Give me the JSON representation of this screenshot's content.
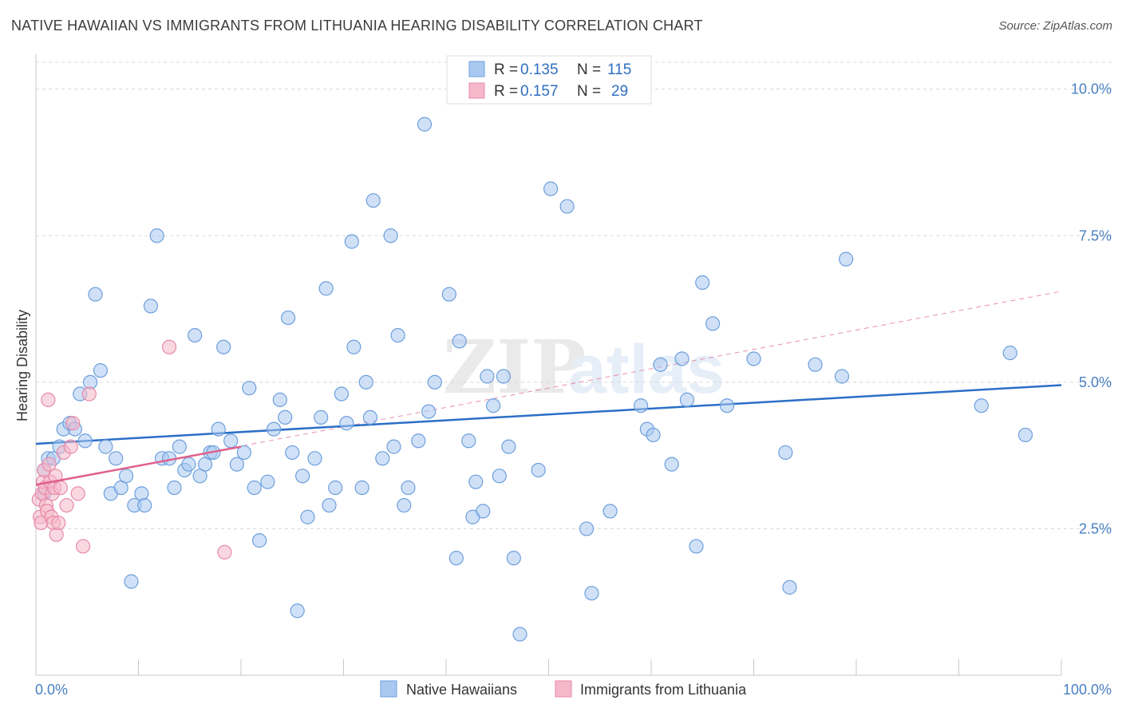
{
  "title": "NATIVE HAWAIIAN VS IMMIGRANTS FROM LITHUANIA HEARING DISABILITY CORRELATION CHART",
  "source": "Source: ZipAtlas.com",
  "watermark": {
    "zip": "ZIP",
    "atlas": "atlas"
  },
  "colors": {
    "blue_fill": "#a9c8f0",
    "blue_stroke": "#6d9fdc",
    "blue_line": "#2b6fc6",
    "pink_fill": "#f5b8cb",
    "pink_stroke": "#e68aa8",
    "pink_line": "#e0608c",
    "grid": "#d8d8d8",
    "tick_text": "#4a7fc1"
  },
  "legend": {
    "rows": [
      {
        "r_label": "R = ",
        "r_value": "0.135",
        "n_label": "N = ",
        "n_value": "115"
      },
      {
        "r_label": "R = ",
        "r_value": "0.157",
        "n_label": "N = ",
        "n_value": "29"
      }
    ]
  },
  "bottom_legend": [
    "Native Hawaiians",
    "Immigrants from Lithuania"
  ],
  "chart_data": {
    "type": "scatter",
    "title": "NATIVE HAWAIIAN VS IMMIGRANTS FROM LITHUANIA HEARING DISABILITY CORRELATION CHART",
    "xlabel": "",
    "ylabel": "Hearing Disability",
    "xlim": [
      0,
      100
    ],
    "ylim": [
      0,
      10.5
    ],
    "x_tick_labels": [
      "0.0%",
      "100.0%"
    ],
    "y_ticks": [
      2.5,
      5.0,
      7.5,
      10.0
    ],
    "y_tick_labels": [
      "2.5%",
      "5.0%",
      "7.5%",
      "10.0%"
    ],
    "grid": "horizontal dashed",
    "legend_position": "top-center",
    "series": [
      {
        "name": "Native Hawaiians",
        "r": 0.135,
        "n": 115,
        "trend": {
          "x": [
            0,
            100
          ],
          "y": [
            3.95,
            4.95
          ]
        },
        "points": [
          [
            0.8,
            3.1
          ],
          [
            0.8,
            3.5
          ],
          [
            1.2,
            3.7
          ],
          [
            1.7,
            3.7
          ],
          [
            2.3,
            3.9
          ],
          [
            2.7,
            4.2
          ],
          [
            3.3,
            4.3
          ],
          [
            3.8,
            4.2
          ],
          [
            4.3,
            4.8
          ],
          [
            4.8,
            4.0
          ],
          [
            5.3,
            5.0
          ],
          [
            5.8,
            6.5
          ],
          [
            6.3,
            5.2
          ],
          [
            6.8,
            3.9
          ],
          [
            7.3,
            3.1
          ],
          [
            7.8,
            3.7
          ],
          [
            8.3,
            3.2
          ],
          [
            8.8,
            3.4
          ],
          [
            9.3,
            1.6
          ],
          [
            9.6,
            2.9
          ],
          [
            10.3,
            3.1
          ],
          [
            10.6,
            2.9
          ],
          [
            11.2,
            6.3
          ],
          [
            11.8,
            7.5
          ],
          [
            12.3,
            3.7
          ],
          [
            13.0,
            3.7
          ],
          [
            13.5,
            3.2
          ],
          [
            14.0,
            3.9
          ],
          [
            14.5,
            3.5
          ],
          [
            14.9,
            3.6
          ],
          [
            15.5,
            5.8
          ],
          [
            16.0,
            3.4
          ],
          [
            16.5,
            3.6
          ],
          [
            17.0,
            3.8
          ],
          [
            17.3,
            3.8
          ],
          [
            17.8,
            4.2
          ],
          [
            18.3,
            5.6
          ],
          [
            19.0,
            4.0
          ],
          [
            19.6,
            3.6
          ],
          [
            20.3,
            3.8
          ],
          [
            20.8,
            4.9
          ],
          [
            21.3,
            3.2
          ],
          [
            21.8,
            2.3
          ],
          [
            22.6,
            3.3
          ],
          [
            23.2,
            4.2
          ],
          [
            23.8,
            4.7
          ],
          [
            24.3,
            4.4
          ],
          [
            24.6,
            6.1
          ],
          [
            25.0,
            3.8
          ],
          [
            25.5,
            1.1
          ],
          [
            26.0,
            3.4
          ],
          [
            26.5,
            2.7
          ],
          [
            27.2,
            3.7
          ],
          [
            27.8,
            4.4
          ],
          [
            28.3,
            6.6
          ],
          [
            28.6,
            2.9
          ],
          [
            29.2,
            3.2
          ],
          [
            29.8,
            4.8
          ],
          [
            30.3,
            4.3
          ],
          [
            30.8,
            7.4
          ],
          [
            31.0,
            5.6
          ],
          [
            31.8,
            3.2
          ],
          [
            32.2,
            5.0
          ],
          [
            32.6,
            4.4
          ],
          [
            32.9,
            8.1
          ],
          [
            33.8,
            3.7
          ],
          [
            34.6,
            7.5
          ],
          [
            34.9,
            3.9
          ],
          [
            35.3,
            5.8
          ],
          [
            35.9,
            2.9
          ],
          [
            36.3,
            3.2
          ],
          [
            37.3,
            4.0
          ],
          [
            37.9,
            9.4
          ],
          [
            38.3,
            4.5
          ],
          [
            38.9,
            5.0
          ],
          [
            40.3,
            6.5
          ],
          [
            41.0,
            2.0
          ],
          [
            41.3,
            5.7
          ],
          [
            42.2,
            4.0
          ],
          [
            42.6,
            2.7
          ],
          [
            42.9,
            3.3
          ],
          [
            43.6,
            2.8
          ],
          [
            44.0,
            5.1
          ],
          [
            44.6,
            4.6
          ],
          [
            45.2,
            3.4
          ],
          [
            45.6,
            5.1
          ],
          [
            46.1,
            3.9
          ],
          [
            46.6,
            2.0
          ],
          [
            47.2,
            0.7
          ],
          [
            49.0,
            3.5
          ],
          [
            50.2,
            8.3
          ],
          [
            51.8,
            8.0
          ],
          [
            53.7,
            2.5
          ],
          [
            54.2,
            1.4
          ],
          [
            56.0,
            2.8
          ],
          [
            59.0,
            4.6
          ],
          [
            59.6,
            4.2
          ],
          [
            60.2,
            4.1
          ],
          [
            60.9,
            5.3
          ],
          [
            62.0,
            3.6
          ],
          [
            63.0,
            5.4
          ],
          [
            63.5,
            4.7
          ],
          [
            64.4,
            2.2
          ],
          [
            65.0,
            6.7
          ],
          [
            66.0,
            6.0
          ],
          [
            67.4,
            4.6
          ],
          [
            70.0,
            5.4
          ],
          [
            73.1,
            3.8
          ],
          [
            73.5,
            1.5
          ],
          [
            76.0,
            5.3
          ],
          [
            78.6,
            5.1
          ],
          [
            79.0,
            7.1
          ],
          [
            92.2,
            4.6
          ],
          [
            95.0,
            5.5
          ],
          [
            96.5,
            4.1
          ]
        ]
      },
      {
        "name": "Immigrants from Lithuania",
        "r": 0.157,
        "n": 29,
        "trend": {
          "x": [
            0,
            20
          ],
          "y": [
            3.25,
            3.9
          ]
        },
        "extended_trend": {
          "x": [
            0,
            100
          ],
          "y": [
            3.25,
            6.55
          ]
        },
        "points": [
          [
            0.3,
            3.0
          ],
          [
            0.4,
            2.7
          ],
          [
            0.5,
            2.6
          ],
          [
            0.6,
            3.1
          ],
          [
            0.7,
            3.3
          ],
          [
            0.8,
            3.5
          ],
          [
            0.9,
            3.2
          ],
          [
            1.0,
            2.9
          ],
          [
            1.1,
            2.8
          ],
          [
            1.2,
            4.7
          ],
          [
            1.3,
            3.6
          ],
          [
            1.4,
            3.3
          ],
          [
            1.5,
            2.7
          ],
          [
            1.6,
            3.1
          ],
          [
            1.7,
            2.6
          ],
          [
            1.8,
            3.2
          ],
          [
            1.9,
            3.4
          ],
          [
            2.0,
            2.4
          ],
          [
            2.2,
            2.6
          ],
          [
            2.4,
            3.2
          ],
          [
            2.7,
            3.8
          ],
          [
            3.0,
            2.9
          ],
          [
            3.4,
            3.9
          ],
          [
            3.6,
            4.3
          ],
          [
            4.1,
            3.1
          ],
          [
            4.6,
            2.2
          ],
          [
            5.2,
            4.8
          ],
          [
            13.0,
            5.6
          ],
          [
            18.4,
            2.1
          ]
        ]
      }
    ]
  }
}
